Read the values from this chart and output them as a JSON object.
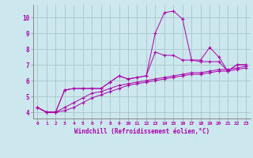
{
  "xlabel": "Windchill (Refroidissement éolien,°C)",
  "bg_color": "#cce8ee",
  "grid_color": "#aacccc",
  "line_color": "#aa00aa",
  "xlim": [
    -0.5,
    23.5
  ],
  "ylim": [
    3.6,
    10.8
  ],
  "xticks": [
    0,
    1,
    2,
    3,
    4,
    5,
    6,
    7,
    8,
    9,
    10,
    11,
    12,
    13,
    14,
    15,
    16,
    17,
    18,
    19,
    20,
    21,
    22,
    23
  ],
  "yticks": [
    4,
    5,
    6,
    7,
    8,
    9,
    10
  ],
  "series1": [
    4.3,
    4.0,
    4.0,
    5.4,
    5.5,
    5.5,
    5.5,
    5.5,
    5.9,
    6.3,
    6.1,
    6.2,
    6.3,
    9.0,
    10.3,
    10.4,
    9.9,
    7.3,
    7.3,
    8.1,
    7.5,
    6.6,
    7.0,
    7.0
  ],
  "series2": [
    4.3,
    4.0,
    4.0,
    5.4,
    5.5,
    5.5,
    5.5,
    5.5,
    5.9,
    6.3,
    6.1,
    6.2,
    6.3,
    7.8,
    7.6,
    7.6,
    7.3,
    7.3,
    7.2,
    7.2,
    7.2,
    6.6,
    7.0,
    7.0
  ],
  "series3": [
    4.3,
    4.0,
    4.0,
    4.3,
    4.6,
    4.9,
    5.2,
    5.3,
    5.5,
    5.7,
    5.8,
    5.9,
    6.0,
    6.1,
    6.2,
    6.3,
    6.4,
    6.5,
    6.5,
    6.6,
    6.7,
    6.7,
    6.8,
    6.9
  ],
  "series4": [
    4.3,
    4.0,
    4.0,
    4.1,
    4.3,
    4.6,
    4.9,
    5.1,
    5.3,
    5.5,
    5.7,
    5.8,
    5.9,
    6.0,
    6.1,
    6.2,
    6.3,
    6.4,
    6.4,
    6.5,
    6.6,
    6.6,
    6.7,
    6.8
  ]
}
